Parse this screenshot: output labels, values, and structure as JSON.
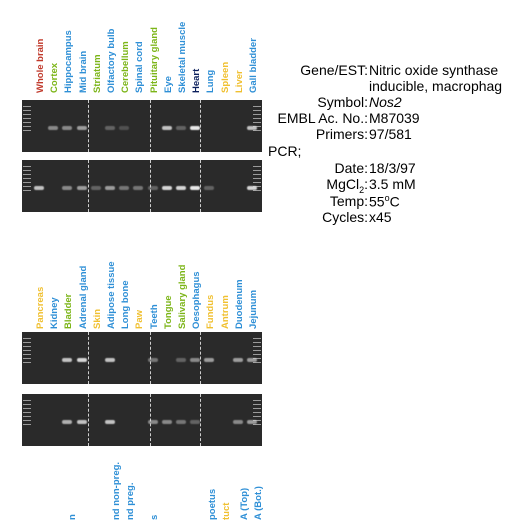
{
  "panel_top": {
    "lanes": [
      {
        "label": "Whole brain",
        "color": "#c0392b"
      },
      {
        "label": "Cortex",
        "color": "#7cb518"
      },
      {
        "label": "Hippocampus",
        "color": "#2e8fd6"
      },
      {
        "label": "Mid brain",
        "color": "#2e8fd6"
      },
      {
        "label": "Striatum",
        "color": "#7cb518"
      },
      {
        "label": "Olfactory bulb",
        "color": "#2e8fd6"
      },
      {
        "label": "Cerebellum",
        "color": "#7cb518"
      },
      {
        "label": "Spinal cord",
        "color": "#2e8fd6"
      },
      {
        "label": "Pituitary gland",
        "color": "#7cb518"
      },
      {
        "label": "Eye",
        "color": "#2e8fd6"
      },
      {
        "label": "Skeletal muscle",
        "color": "#2e8fd6"
      },
      {
        "label": "Heart",
        "color": "#0b1f5c"
      },
      {
        "label": "Lung",
        "color": "#2e8fd6"
      },
      {
        "label": "Spleen",
        "color": "#f0c030"
      },
      {
        "label": "Liver",
        "color": "#f0c030"
      },
      {
        "label": "Gall bladder",
        "color": "#2e8fd6"
      }
    ]
  },
  "panel_bottom": {
    "lanes": [
      {
        "label": "Pancreas",
        "color": "#f0c030"
      },
      {
        "label": "Kidney",
        "color": "#2e8fd6"
      },
      {
        "label": "Bladder",
        "color": "#7cb518"
      },
      {
        "label": "Adrenal gland",
        "color": "#2e8fd6"
      },
      {
        "label": "Skin",
        "color": "#f0c030"
      },
      {
        "label": "Adipose tissue",
        "color": "#2e8fd6"
      },
      {
        "label": "Long bone",
        "color": "#2e8fd6"
      },
      {
        "label": "Paw",
        "color": "#f0c030"
      },
      {
        "label": "Teeth",
        "color": "#2e8fd6"
      },
      {
        "label": "Tongue",
        "color": "#7cb518"
      },
      {
        "label": "Salivary gland",
        "color": "#7cb518"
      },
      {
        "label": "Oesophagus",
        "color": "#2e8fd6"
      },
      {
        "label": "Fundus",
        "color": "#f0c030"
      },
      {
        "label": "Antrum",
        "color": "#f0c030"
      },
      {
        "label": "Duodenum",
        "color": "#2e8fd6"
      },
      {
        "label": "Jejunum",
        "color": "#2e8fd6"
      }
    ]
  },
  "panel_third_partial": {
    "lanes": [
      {
        "label": "n",
        "color": "#2e8fd6"
      },
      {
        "label": "nd non-preg.",
        "color": "#2e8fd6"
      },
      {
        "label": "nd preg.",
        "color": "#2e8fd6"
      },
      {
        "label": "s",
        "color": "#2e8fd6"
      },
      {
        "label": "poetus",
        "color": "#2e8fd6"
      },
      {
        "label": "tuct",
        "color": "#f0c030"
      },
      {
        "label": "A (Top)",
        "color": "#2e8fd6"
      },
      {
        "label": "A (Bot.)",
        "color": "#2e8fd6"
      }
    ]
  },
  "info": {
    "gene_key": "Gene/EST:",
    "gene_value_line1": "Nitric oxide synthase",
    "gene_value_line2": "inducible, macrophag",
    "symbol_key": "Symbol:",
    "symbol_value": "Nos2",
    "embl_key": "EMBL Ac. No.:",
    "embl_value": "M87039",
    "primers_key": "Primers:",
    "primers_value": "97/581",
    "pcr_heading": "PCR;",
    "date_key": "Date:",
    "date_value": "18/3/97",
    "mgcl2_key_main": "MgCl",
    "mgcl2_key_sub": "2",
    "mgcl2_key_colon": ":",
    "mgcl2_value": "3.5 mM",
    "temp_key": "Temp:",
    "temp_value_num": "55",
    "temp_value_sup": "o",
    "temp_value_unit": "C",
    "cycles_key": "Cycles:",
    "cycles_value": "x45"
  },
  "gels": {
    "top_row1_bands": [
      0,
      0.5,
      0.5,
      0.6,
      0,
      0.3,
      0.2,
      0,
      0,
      0.8,
      0.3,
      1,
      0,
      0,
      0,
      0.8
    ],
    "top_row2_bands": [
      0.8,
      0,
      0.5,
      0.6,
      0.3,
      0.6,
      0.4,
      0.4,
      0.3,
      0.9,
      0.9,
      1,
      0.3,
      0,
      0,
      0.9
    ],
    "bottom_row1_bands": [
      0,
      0,
      0.8,
      0.9,
      0,
      0.8,
      0,
      0,
      0.4,
      0,
      0.3,
      0.5,
      0.6,
      0,
      0.6,
      0.6
    ],
    "bottom_row2_bands": [
      0,
      0,
      0.7,
      0.8,
      0,
      0.8,
      0,
      0,
      0.5,
      0.5,
      0.4,
      0.3,
      0,
      0,
      0.5,
      0.6
    ]
  }
}
